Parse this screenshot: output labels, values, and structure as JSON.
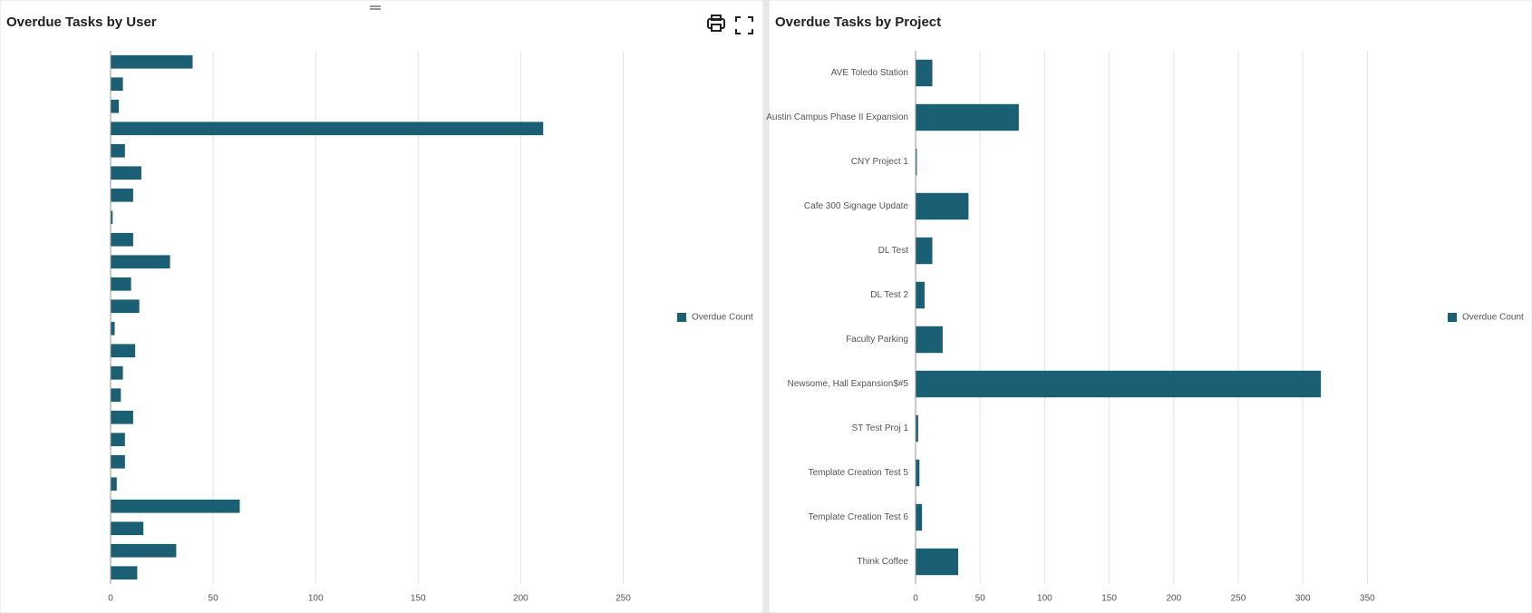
{
  "chart_data": [
    {
      "type": "bar",
      "orientation": "horizontal",
      "title": "Overdue Tasks by User",
      "categories": [
        null,
        null,
        null,
        null,
        null,
        null,
        null,
        null,
        null,
        null,
        null,
        null,
        null,
        null,
        null,
        null,
        null,
        null,
        null,
        null,
        null,
        null,
        null,
        null
      ],
      "series": [
        {
          "name": "Overdue Count",
          "color": "#1b5f74",
          "values": [
            40,
            6,
            4,
            211,
            7,
            15,
            11,
            1,
            11,
            29,
            10,
            14,
            2,
            12,
            6,
            5,
            11,
            7,
            7,
            3,
            63,
            16,
            32,
            13
          ]
        }
      ],
      "xlim": [
        0,
        275
      ],
      "xticks": [
        0,
        50,
        100,
        150,
        200,
        250
      ],
      "grid": true,
      "legend": "right"
    },
    {
      "type": "bar",
      "orientation": "horizontal",
      "title": "Overdue Tasks by Project",
      "categories": [
        "AVE Toledo Station",
        "Austin Campus Phase II Expansion",
        "CNY Project 1",
        "Cafe 300 Signage Update",
        "DL Test",
        "DL Test 2",
        "Faculty Parking",
        "Newsome, Hall Expansion$#5",
        "ST Test Proj 1",
        "Template Creation Test 5",
        "Template Creation Test 6",
        "Think Coffee"
      ],
      "series": [
        {
          "name": "Overdue Count",
          "color": "#1b5f74",
          "values": [
            13,
            80,
            1,
            41,
            13,
            7,
            21,
            314,
            2,
            3,
            5,
            33
          ]
        }
      ],
      "xlim": [
        0,
        375
      ],
      "xticks": [
        0,
        50,
        100,
        150,
        200,
        250,
        300,
        350
      ],
      "grid": true,
      "legend": "right"
    }
  ]
}
